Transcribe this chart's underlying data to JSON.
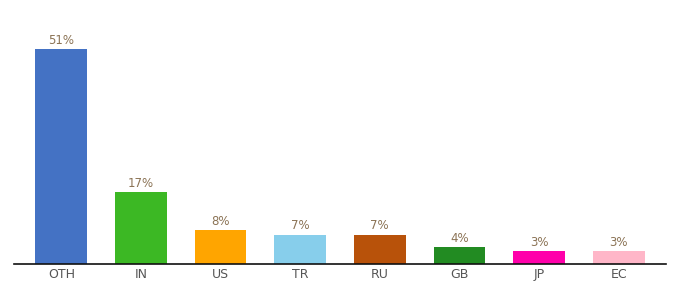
{
  "categories": [
    "OTH",
    "IN",
    "US",
    "TR",
    "RU",
    "GB",
    "JP",
    "EC"
  ],
  "values": [
    51,
    17,
    8,
    7,
    7,
    4,
    3,
    3
  ],
  "bar_colors": [
    "#4472C4",
    "#3CB824",
    "#FFA500",
    "#87CEEB",
    "#B8520A",
    "#228B22",
    "#FF00AA",
    "#FFB6C8"
  ],
  "label_color": "#8B7355",
  "ylim": [
    0,
    57
  ],
  "background_color": "#FFFFFF",
  "bar_width": 0.65,
  "label_fontsize": 8.5,
  "tick_fontsize": 9.0,
  "figsize": [
    6.8,
    3.0
  ],
  "dpi": 100
}
